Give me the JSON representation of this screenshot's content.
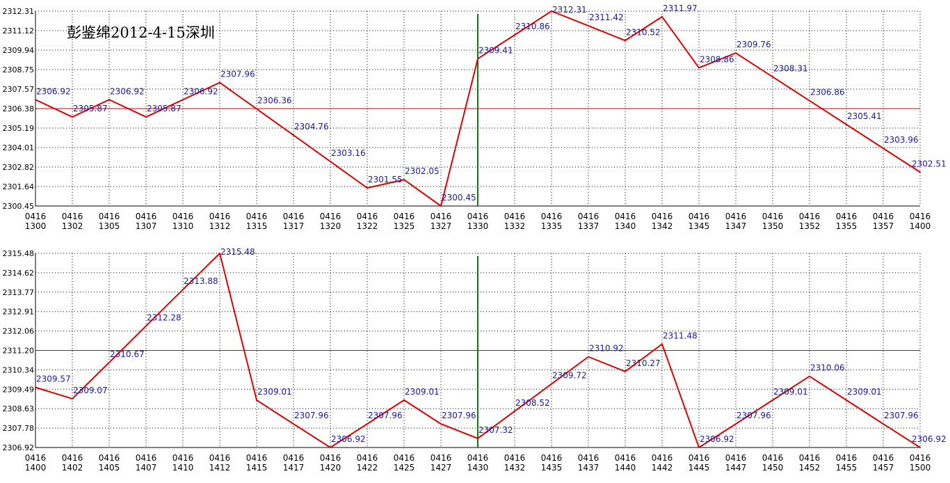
{
  "title": "彭鉴绵2012-4-15深圳",
  "colors": {
    "line": "#dd0000",
    "reference_line": "#dd0000",
    "marker_line": "#008000",
    "grid": "#000000",
    "data_label": "#1a1aa0",
    "background": "#ffffff"
  },
  "chart_data": [
    {
      "type": "line",
      "title": "彭鉴绵2012-4-15深圳",
      "x": [
        "0416 1300",
        "0416 1302",
        "0416 1305",
        "0416 1307",
        "0416 1310",
        "0416 1312",
        "0416 1315",
        "0416 1317",
        "0416 1320",
        "0416 1322",
        "0416 1325",
        "0416 1327",
        "0416 1330",
        "0416 1332",
        "0416 1335",
        "0416 1337",
        "0416 1340",
        "0416 1342",
        "0416 1345",
        "0416 1347",
        "0416 1350",
        "0416 1352",
        "0416 1355",
        "0416 1357",
        "0416 1400"
      ],
      "xtick_top": [
        "0416",
        "0416",
        "0416",
        "0416",
        "0416",
        "0416",
        "0416",
        "0416",
        "0416",
        "0416",
        "0416",
        "0416",
        "0416",
        "0416",
        "0416",
        "0416",
        "0416",
        "0416",
        "0416",
        "0416",
        "0416",
        "0416",
        "0416",
        "0416",
        "0416"
      ],
      "xtick_bottom": [
        "1300",
        "1302",
        "1305",
        "1307",
        "1310",
        "1312",
        "1315",
        "1317",
        "1320",
        "1322",
        "1325",
        "1327",
        "1330",
        "1332",
        "1335",
        "1337",
        "1340",
        "1342",
        "1345",
        "1347",
        "1350",
        "1352",
        "1355",
        "1357",
        "1400"
      ],
      "values": [
        2306.92,
        2305.87,
        2306.92,
        2305.87,
        2306.92,
        2307.96,
        2306.36,
        2304.76,
        2303.16,
        2301.55,
        2302.05,
        2300.45,
        2309.41,
        2310.86,
        2312.31,
        2311.42,
        2310.52,
        2311.97,
        2308.86,
        2309.76,
        2308.31,
        2306.86,
        2305.41,
        2303.96,
        2302.51
      ],
      "point_labels": [
        "2306.92",
        "2305.87",
        "2306.92",
        "2305.87",
        "2306.92",
        "2307.96",
        "2306.36",
        "2304.76",
        "2303.16",
        "2301.55",
        "2302.05",
        "2300.45",
        "2309.41",
        "2310.86",
        "2312.31",
        "2311.42",
        "2310.52",
        "2311.97",
        "2308.86",
        "2309.76",
        "2308.31",
        "2306.86",
        "2305.41",
        "2303.96",
        "2302.51"
      ],
      "yticks": [
        "2312.31",
        "2311.12",
        "2309.94",
        "2308.75",
        "2307.57",
        "2306.38",
        "2305.19",
        "2304.01",
        "2302.82",
        "2301.64",
        "2300.45"
      ],
      "ylim": [
        2300.45,
        2312.31
      ],
      "reference_value": 2306.38,
      "marker_x": "0416 1330",
      "grid": true
    },
    {
      "type": "line",
      "x": [
        "0416 1400",
        "0416 1402",
        "0416 1405",
        "0416 1407",
        "0416 1410",
        "0416 1412",
        "0416 1415",
        "0416 1417",
        "0416 1420",
        "0416 1422",
        "0416 1425",
        "0416 1427",
        "0416 1430",
        "0416 1432",
        "0416 1435",
        "0416 1437",
        "0416 1440",
        "0416 1442",
        "0416 1445",
        "0416 1447",
        "0416 1450",
        "0416 1452",
        "0416 1455",
        "0416 1457",
        "0416 1500"
      ],
      "xtick_top": [
        "0416",
        "0416",
        "0416",
        "0416",
        "0416",
        "0416",
        "0416",
        "0416",
        "0416",
        "0416",
        "0416",
        "0416",
        "0416",
        "0416",
        "0416",
        "0416",
        "0416",
        "0416",
        "0416",
        "0416",
        "0416",
        "0416",
        "0416",
        "0416",
        "0416"
      ],
      "xtick_bottom": [
        "1400",
        "1402",
        "1405",
        "1407",
        "1410",
        "1412",
        "1415",
        "1417",
        "1420",
        "1422",
        "1425",
        "1427",
        "1430",
        "1432",
        "1435",
        "1437",
        "1440",
        "1442",
        "1445",
        "1447",
        "1450",
        "1452",
        "1455",
        "1457",
        "1500"
      ],
      "values": [
        2309.57,
        2309.07,
        2310.67,
        2312.28,
        2313.88,
        2315.48,
        2309.01,
        2307.96,
        2306.92,
        2307.96,
        2309.01,
        2307.96,
        2307.32,
        2308.52,
        2309.72,
        2310.92,
        2310.27,
        2311.48,
        2306.92,
        2307.96,
        2309.01,
        2310.06,
        2309.01,
        2307.96,
        2306.92
      ],
      "point_labels": [
        "2309.57",
        "2309.07",
        "2310.67",
        "2312.28",
        "2313.88",
        "2315.48",
        "2309.01",
        "2307.96",
        "2306.92",
        "2307.96",
        "2309.01",
        "2307.96",
        "2307.32",
        "2308.52",
        "2309.72",
        "2310.92",
        "2310.27",
        "2311.48",
        "2306.92",
        "2307.96",
        "2309.01",
        "2310.06",
        "2309.01",
        "2307.96",
        "2306.92"
      ],
      "yticks": [
        "2315.48",
        "2314.62",
        "2313.77",
        "2312.91",
        "2312.06",
        "2311.20",
        "2310.34",
        "2309.49",
        "2308.63",
        "2307.78",
        "2306.92"
      ],
      "ylim": [
        2306.92,
        2315.48
      ],
      "reference_value": 2311.2,
      "marker_x": "0416 1430",
      "grid": true
    }
  ]
}
